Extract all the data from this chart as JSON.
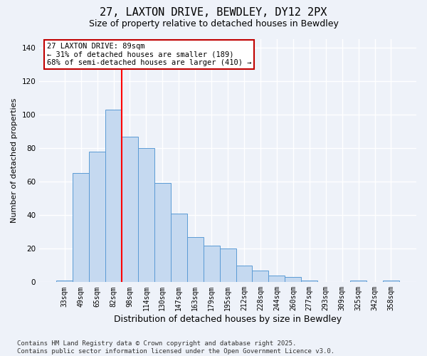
{
  "title1": "27, LAXTON DRIVE, BEWDLEY, DY12 2PX",
  "title2": "Size of property relative to detached houses in Bewdley",
  "xlabel": "Distribution of detached houses by size in Bewdley",
  "ylabel": "Number of detached properties",
  "categories": [
    "33sqm",
    "49sqm",
    "65sqm",
    "82sqm",
    "98sqm",
    "114sqm",
    "130sqm",
    "147sqm",
    "163sqm",
    "179sqm",
    "195sqm",
    "212sqm",
    "228sqm",
    "244sqm",
    "260sqm",
    "277sqm",
    "293sqm",
    "309sqm",
    "325sqm",
    "342sqm",
    "358sqm"
  ],
  "values": [
    1,
    65,
    78,
    103,
    87,
    80,
    59,
    41,
    27,
    22,
    20,
    10,
    7,
    4,
    3,
    1,
    0,
    0,
    1,
    0,
    1
  ],
  "bar_color": "#c5d9f0",
  "bar_edge_color": "#5b9bd5",
  "red_line_x": 3.5,
  "annotation_text": "27 LAXTON DRIVE: 89sqm\n← 31% of detached houses are smaller (189)\n68% of semi-detached houses are larger (410) →",
  "annotation_box_color": "#ffffff",
  "annotation_box_edge": "#c00000",
  "ylim": [
    0,
    145
  ],
  "yticks": [
    0,
    20,
    40,
    60,
    80,
    100,
    120,
    140
  ],
  "footer1": "Contains HM Land Registry data © Crown copyright and database right 2025.",
  "footer2": "Contains public sector information licensed under the Open Government Licence v3.0.",
  "bg_color": "#eef2f9",
  "grid_color": "#ffffff",
  "title1_fontsize": 11,
  "title2_fontsize": 9,
  "xlabel_fontsize": 9,
  "ylabel_fontsize": 8,
  "tick_fontsize": 7,
  "annotation_fontsize": 7.5,
  "footer_fontsize": 6.5
}
